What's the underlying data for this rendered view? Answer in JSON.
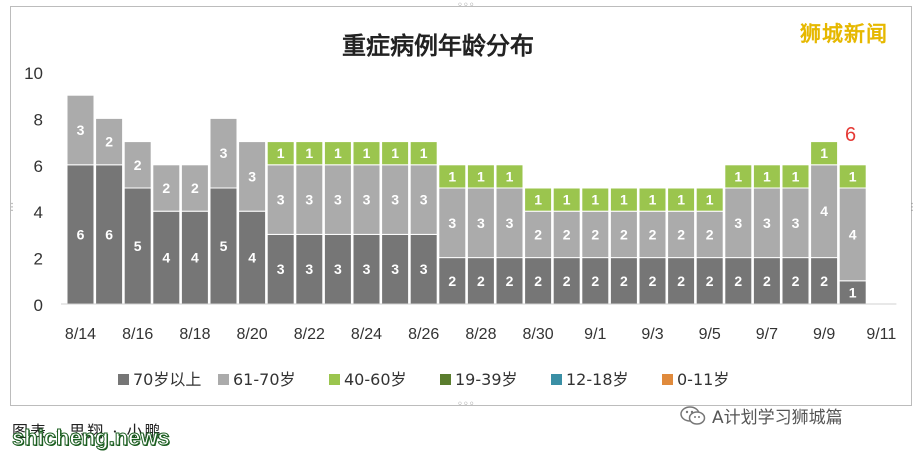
{
  "brand": "狮城新闻",
  "callout": "6",
  "footer": {
    "left": "图表 · 思翔 · 小鹏",
    "site": "shicheng.news",
    "account": "A计划学习狮城篇"
  },
  "colors": {
    "70+": "#767676",
    "61-70": "#ababab",
    "40-60": "#9bc54e",
    "19-39": "#5a7d2e",
    "12-18": "#3a8fa5",
    "0-11": "#e08a3c",
    "callout": "#e53935",
    "brand": "#e6b800"
  },
  "chart_data": {
    "type": "bar",
    "stacked": true,
    "title": "重症病例年龄分布",
    "xlabel": "",
    "ylabel": "",
    "ylim": [
      0,
      10
    ],
    "yticks": [
      0,
      2,
      4,
      6,
      8,
      10
    ],
    "grid": false,
    "legend_position": "bottom",
    "categories": [
      "8/14",
      "8/15",
      "8/16",
      "8/17",
      "8/18",
      "8/19",
      "8/20",
      "8/21",
      "8/22",
      "8/23",
      "8/24",
      "8/25",
      "8/26",
      "8/27",
      "8/28",
      "8/29",
      "8/30",
      "8/31",
      "9/1",
      "9/2",
      "9/3",
      "9/4",
      "9/5",
      "9/6",
      "9/7",
      "9/8",
      "9/9",
      "9/10",
      "9/11"
    ],
    "tick_labels": [
      "8/14",
      "8/16",
      "8/18",
      "8/20",
      "8/22",
      "8/24",
      "8/26",
      "8/28",
      "8/30",
      "9/1",
      "9/3",
      "9/5",
      "9/7",
      "9/9",
      "9/11"
    ],
    "series": [
      {
        "name": "70岁以上",
        "color": "#767676",
        "values": [
          6,
          6,
          5,
          4,
          4,
          5,
          4,
          3,
          3,
          3,
          3,
          3,
          3,
          2,
          2,
          2,
          2,
          2,
          2,
          2,
          2,
          2,
          2,
          2,
          2,
          2,
          2,
          1,
          0
        ]
      },
      {
        "name": "61-70岁",
        "color": "#ababab",
        "values": [
          3,
          2,
          2,
          2,
          2,
          3,
          3,
          3,
          3,
          3,
          3,
          3,
          3,
          3,
          3,
          3,
          2,
          2,
          2,
          2,
          2,
          2,
          2,
          3,
          3,
          3,
          4,
          4,
          0
        ]
      },
      {
        "name": "40-60岁",
        "color": "#9bc54e",
        "values": [
          0,
          0,
          0,
          0,
          0,
          0,
          0,
          1,
          1,
          1,
          1,
          1,
          1,
          1,
          1,
          1,
          1,
          1,
          1,
          1,
          1,
          1,
          1,
          1,
          1,
          1,
          1,
          1,
          0
        ]
      },
      {
        "name": "19-39岁",
        "color": "#5a7d2e",
        "values": [
          0,
          0,
          0,
          0,
          0,
          0,
          0,
          0,
          0,
          0,
          0,
          0,
          0,
          0,
          0,
          0,
          0,
          0,
          0,
          0,
          0,
          0,
          0,
          0,
          0,
          0,
          0,
          0,
          0
        ]
      },
      {
        "name": "12-18岁",
        "color": "#3a8fa5",
        "values": [
          0,
          0,
          0,
          0,
          0,
          0,
          0,
          0,
          0,
          0,
          0,
          0,
          0,
          0,
          0,
          0,
          0,
          0,
          0,
          0,
          0,
          0,
          0,
          0,
          0,
          0,
          0,
          0,
          0
        ]
      },
      {
        "name": "0-11岁",
        "color": "#e08a3c",
        "values": [
          0,
          0,
          0,
          0,
          0,
          0,
          0,
          0,
          0,
          0,
          0,
          0,
          0,
          0,
          0,
          0,
          0,
          0,
          0,
          0,
          0,
          0,
          0,
          0,
          0,
          0,
          0,
          0,
          0
        ]
      }
    ]
  }
}
